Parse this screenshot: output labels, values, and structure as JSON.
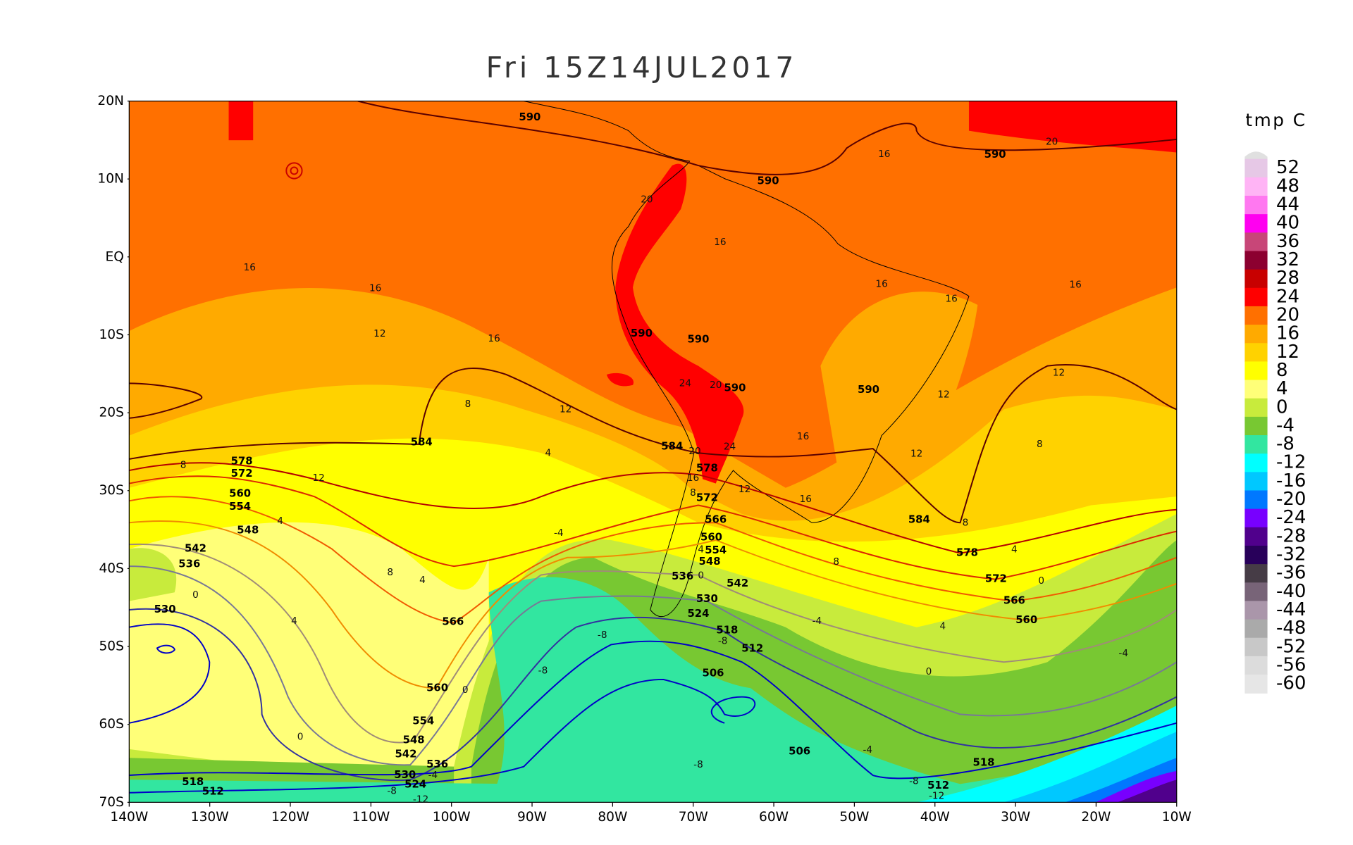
{
  "title": "Fri  15Z14JUL2017",
  "map": {
    "lat_labels": [
      "20N",
      "10N",
      "EQ",
      "10S",
      "20S",
      "30S",
      "40S",
      "50S",
      "60S",
      "70S"
    ],
    "lon_labels": [
      "140W",
      "130W",
      "120W",
      "110W",
      "100W",
      "90W",
      "80W",
      "70W",
      "60W",
      "50W",
      "40W",
      "30W",
      "20W",
      "10W"
    ],
    "height_contour_labels": [
      590,
      590,
      590,
      590,
      590,
      590,
      590,
      584,
      584,
      584,
      578,
      572,
      560,
      554,
      548,
      542,
      536,
      530,
      578,
      572,
      566,
      560,
      554,
      548,
      536,
      542,
      530,
      524,
      518,
      512,
      506,
      578,
      572,
      566,
      560,
      566,
      560,
      554,
      548,
      542,
      536,
      530,
      524,
      518,
      512,
      506,
      518,
      512
    ],
    "temperature_contour_labels": [
      16,
      16,
      12,
      16,
      20,
      16,
      16,
      20,
      16,
      16,
      16,
      8,
      12,
      4,
      8,
      12,
      4,
      20,
      24,
      16,
      24,
      20,
      8,
      12,
      16,
      16,
      12,
      12,
      12,
      8,
      8,
      4,
      8,
      0,
      4,
      4,
      8,
      0,
      4,
      -4,
      -4,
      -8,
      -8,
      0,
      -4,
      -8,
      4,
      0,
      0,
      0,
      -4,
      -8,
      -12,
      -4,
      -8,
      -8,
      -12
    ]
  },
  "colorbar": {
    "title": "tmp C",
    "labels": [
      52,
      48,
      44,
      40,
      36,
      32,
      28,
      24,
      20,
      16,
      12,
      8,
      4,
      0,
      -4,
      -8,
      -12,
      -16,
      -20,
      -24,
      -28,
      -32,
      -36,
      -40,
      -44,
      -48,
      -52,
      -56,
      -60
    ],
    "colors": [
      "#e6c8e6",
      "#ffb4f5",
      "#ff78f0",
      "#ff00f0",
      "#c84678",
      "#8c0030",
      "#c80000",
      "#ff0000",
      "#ff7000",
      "#ffaa00",
      "#ffd200",
      "#ffff00",
      "#ffff78",
      "#c8eb3c",
      "#78c832",
      "#32e6a0",
      "#00ffff",
      "#00c8ff",
      "#0078ff",
      "#7800ff",
      "#50008c",
      "#28005a",
      "#463c46",
      "#786478",
      "#aa96aa",
      "#aaaaaa",
      "#c8c8c8",
      "#dcdcdc",
      "#e6e6e6"
    ]
  }
}
